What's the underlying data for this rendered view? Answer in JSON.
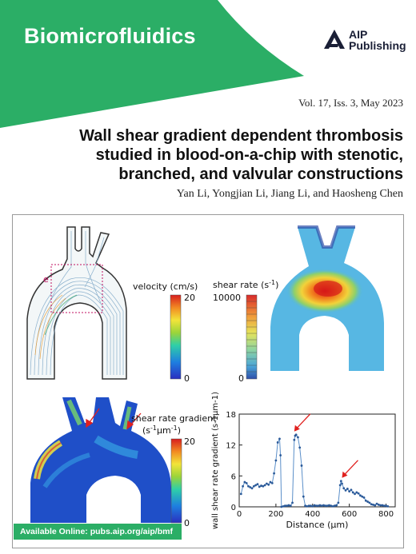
{
  "journal": {
    "name": "Biomicrofluidics",
    "publisher_line1": "AIP",
    "publisher_line2": "Publishing"
  },
  "issue": {
    "text": "Vol. 17, Iss. 3, May 2023"
  },
  "article": {
    "title": "Wall shear gradient dependent thrombosis studied in blood-on-a-chip with stenotic, branched, and valvular constructions",
    "authors": "Yan Li, Yongjian Li, Jiang Li, and Haosheng Chen"
  },
  "figure": {
    "panel_label": "e",
    "velocity": {
      "title": "velocity (cm/s)",
      "max": "20",
      "min": "0"
    },
    "shear": {
      "title": "shear rate (s",
      "sup": "-1",
      "close": ")",
      "max": "10000",
      "min": "0"
    },
    "gradient": {
      "title_line1": "shear rate gradient",
      "title_line2": "(s",
      "sup1": "-1",
      "mid": "μm",
      "sup2": "-1",
      "close": ")",
      "max": "20",
      "min": "0"
    }
  },
  "colors": {
    "brand_green": "#2bae66",
    "series": "#5b8fc9",
    "arrow": "#e0201e"
  },
  "chart_data": {
    "type": "line",
    "xlabel": "Distance (μm)",
    "ylabel": "wall shear rate gradient (s-1μm-1)",
    "xlim": [
      0,
      850
    ],
    "ylim": [
      0,
      18
    ],
    "xticks": [
      "0",
      "200",
      "400",
      "600",
      "800"
    ],
    "yticks": [
      "0",
      "6",
      "12",
      "18"
    ],
    "x": [
      10,
      20,
      30,
      40,
      50,
      60,
      70,
      80,
      90,
      100,
      110,
      120,
      130,
      140,
      150,
      160,
      170,
      180,
      190,
      200,
      210,
      220,
      225,
      230,
      240,
      250,
      260,
      270,
      280,
      290,
      300,
      305,
      310,
      320,
      330,
      340,
      350,
      360,
      370,
      380,
      390,
      400,
      410,
      420,
      430,
      440,
      450,
      460,
      470,
      480,
      490,
      500,
      510,
      520,
      530,
      540,
      550,
      555,
      560,
      570,
      580,
      590,
      600,
      610,
      620,
      630,
      640,
      650,
      660,
      670,
      680,
      690,
      700,
      710,
      720,
      730,
      740,
      750,
      760,
      770,
      780,
      790,
      800,
      810
    ],
    "values": [
      2.5,
      4.0,
      4.8,
      4.6,
      4.0,
      3.8,
      3.6,
      4.0,
      4.2,
      4.4,
      3.9,
      4.1,
      4.0,
      4.2,
      4.5,
      4.3,
      4.8,
      4.6,
      6.5,
      9.0,
      12.5,
      13.2,
      10.0,
      0.0,
      0.1,
      0.2,
      0.2,
      0.3,
      0.2,
      0.8,
      13.0,
      13.8,
      14.0,
      13.5,
      11.5,
      8.0,
      2.0,
      0.2,
      0.1,
      0.2,
      0.2,
      0.1,
      0.3,
      0.2,
      0.2,
      0.3,
      0.2,
      0.3,
      0.2,
      0.2,
      0.3,
      0.2,
      0.1,
      0.2,
      0.3,
      0.8,
      4.2,
      5.0,
      4.5,
      3.6,
      3.2,
      3.5,
      3.0,
      3.3,
      2.8,
      2.5,
      2.8,
      2.6,
      2.2,
      2.0,
      1.8,
      1.2,
      1.0,
      0.8,
      0.5,
      0.4,
      0.3,
      0.6,
      0.4,
      0.3,
      0.3,
      0.2,
      0.2,
      0.1
    ],
    "annotations": [
      {
        "x": 300,
        "y": 14
      },
      {
        "x": 560,
        "y": 5
      }
    ]
  }
}
